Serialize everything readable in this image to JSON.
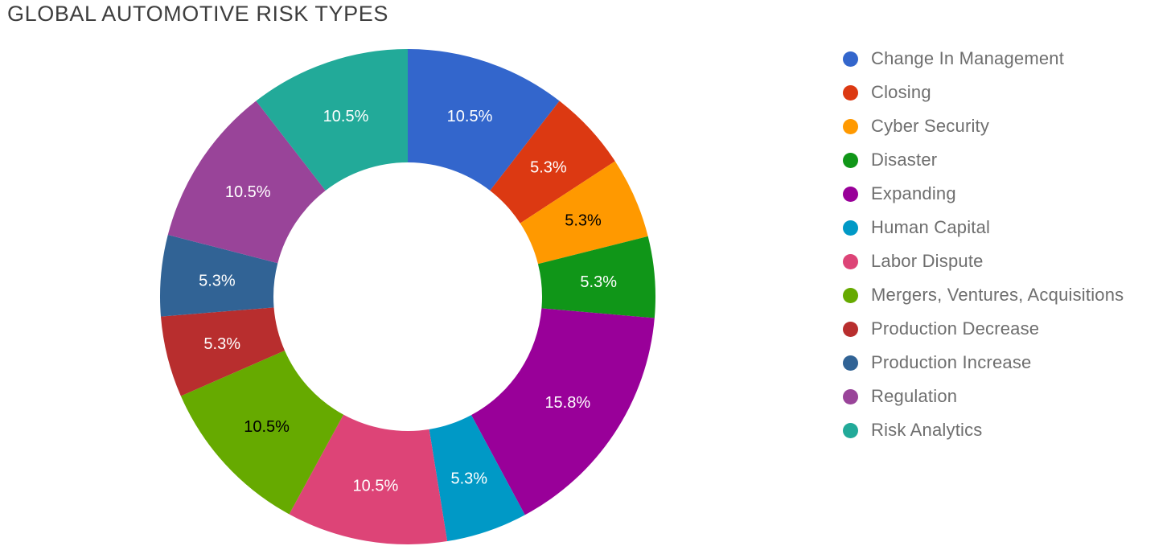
{
  "title": "GLOBAL AUTOMOTIVE RISK TYPES",
  "chart_data": {
    "type": "pie",
    "subtype": "donut",
    "title": "GLOBAL AUTOMOTIVE RISK TYPES",
    "legend_position": "right",
    "start_angle_deg": 0,
    "grid": false,
    "slices": [
      {
        "label": "Change In Management",
        "value_pct": 10.5,
        "display": "10.5%",
        "color": "#3366CC",
        "text_color": "#ffffff"
      },
      {
        "label": "Closing",
        "value_pct": 5.3,
        "display": "5.3%",
        "color": "#DC3912",
        "text_color": "#ffffff"
      },
      {
        "label": "Cyber Security",
        "value_pct": 5.3,
        "display": "5.3%",
        "color": "#FF9900",
        "text_color": "#000000"
      },
      {
        "label": "Disaster",
        "value_pct": 5.3,
        "display": "5.3%",
        "color": "#109618",
        "text_color": "#ffffff"
      },
      {
        "label": "Expanding",
        "value_pct": 15.8,
        "display": "15.8%",
        "color": "#990099",
        "text_color": "#ffffff"
      },
      {
        "label": "Human Capital",
        "value_pct": 5.3,
        "display": "5.3%",
        "color": "#0099C6",
        "text_color": "#ffffff"
      },
      {
        "label": "Labor Dispute",
        "value_pct": 10.5,
        "display": "10.5%",
        "color": "#DD4477",
        "text_color": "#ffffff"
      },
      {
        "label": "Mergers, Ventures, Acquisitions",
        "value_pct": 10.5,
        "display": "10.5%",
        "color": "#66AA00",
        "text_color": "#000000"
      },
      {
        "label": "Production Decrease",
        "value_pct": 5.3,
        "display": "5.3%",
        "color": "#B82E2E",
        "text_color": "#ffffff"
      },
      {
        "label": "Production Increase",
        "value_pct": 5.3,
        "display": "5.3%",
        "color": "#316395",
        "text_color": "#ffffff"
      },
      {
        "label": "Regulation",
        "value_pct": 10.5,
        "display": "10.5%",
        "color": "#994499",
        "text_color": "#ffffff"
      },
      {
        "label": "Risk Analytics",
        "value_pct": 10.5,
        "display": "10.5%",
        "color": "#22AA99",
        "text_color": "#ffffff"
      }
    ]
  }
}
